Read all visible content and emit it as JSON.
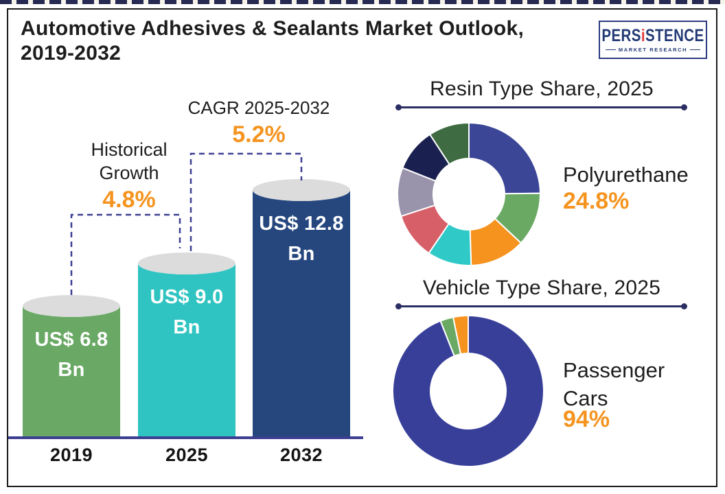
{
  "page": {
    "title": "Automotive Adhesives & Sealants Market Outlook, 2019-2032",
    "logo": {
      "name_pre": "PERS",
      "name_i": "i",
      "name_post": "STENCE",
      "subtitle": "MARKET RESEARCH"
    }
  },
  "colors": {
    "accent_orange": "#f5941f",
    "dashed_connector": "#3c3f91",
    "baseline": "#3c3f91",
    "cylinder_cap": "#dcdcdd",
    "frame": "#1a1a1a",
    "rule_navy": "#2b2e63"
  },
  "chart_data": [
    {
      "type": "bar",
      "title": "Automotive Adhesives & Sealants Market, US$ Bn",
      "categories": [
        "2019",
        "2025",
        "2032"
      ],
      "values": [
        6.8,
        9.0,
        12.8
      ],
      "ylabel": "US$ Bn",
      "bars": [
        {
          "year": "2019",
          "value": 6.8,
          "label_lines": [
            "US$ 6.8",
            "Bn"
          ],
          "color": "#6aa965"
        },
        {
          "year": "2025",
          "value": 9.0,
          "label_lines": [
            "US$ 9.0",
            "Bn"
          ],
          "color": "#2fc4c1"
        },
        {
          "year": "2032",
          "value": 12.8,
          "label_lines": [
            "US$ 12.8",
            "Bn"
          ],
          "color": "#26477e"
        }
      ],
      "annotations": [
        {
          "label": "Historical Growth",
          "value": "4.8%"
        },
        {
          "label": "CAGR 2025-2032",
          "value": "5.2%"
        }
      ]
    },
    {
      "type": "donut",
      "title": "Resin Type Share, 2025",
      "highlight": {
        "label": "Polyurethane",
        "value": "24.8%"
      },
      "slices": [
        {
          "label": "Polyurethane",
          "pct": 24.8,
          "color": "#3b4697"
        },
        {
          "label": "",
          "pct": 12.2,
          "color": "#6aa964"
        },
        {
          "label": "",
          "pct": 12.5,
          "color": "#f6921e"
        },
        {
          "label": "",
          "pct": 10.0,
          "color": "#2fc9c7"
        },
        {
          "label": "",
          "pct": 10.5,
          "color": "#d75f68"
        },
        {
          "label": "",
          "pct": 11.0,
          "color": "#9a93ac"
        },
        {
          "label": "",
          "pct": 9.8,
          "color": "#1a2150"
        },
        {
          "label": "",
          "pct": 9.2,
          "color": "#3e6b41"
        }
      ]
    },
    {
      "type": "donut",
      "title": "Vehicle Type Share, 2025",
      "highlight": {
        "label": "Passenger Cars",
        "value": "94%"
      },
      "slices": [
        {
          "label": "Passenger Cars",
          "pct": 94.0,
          "color": "#373f99"
        },
        {
          "label": "",
          "pct": 2.8,
          "color": "#6aa964"
        },
        {
          "label": "",
          "pct": 3.2,
          "color": "#f6921e"
        }
      ]
    }
  ]
}
